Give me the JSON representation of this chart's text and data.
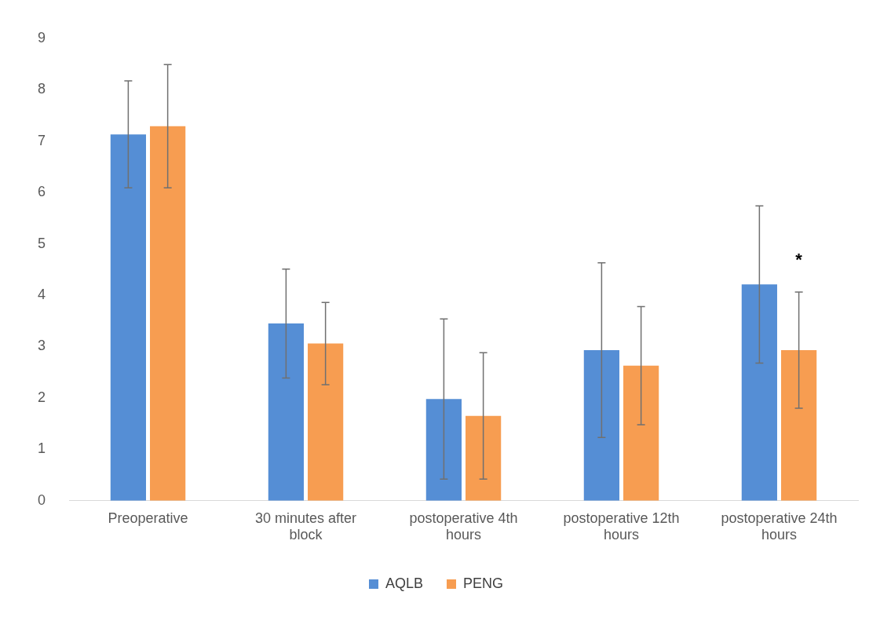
{
  "chart_data": {
    "type": "bar",
    "categories": [
      "Preoperative",
      "30 minutes after block",
      "postoperative 4th hours",
      "postoperative 12th hours",
      "postoperative 24th hours"
    ],
    "series": [
      {
        "name": "AQLB",
        "color": "#558ed5",
        "values": [
          7.13,
          3.45,
          1.98,
          2.93,
          4.21
        ],
        "errors": [
          1.04,
          1.06,
          1.56,
          1.7,
          1.53
        ]
      },
      {
        "name": "PENG",
        "color": "#f79d51",
        "values": [
          7.29,
          3.06,
          1.65,
          2.63,
          2.93
        ],
        "errors": [
          1.2,
          0.8,
          1.23,
          1.15,
          1.13
        ]
      }
    ],
    "ylim": [
      0,
      9
    ],
    "yticks": [
      0,
      1,
      2,
      3,
      4,
      5,
      6,
      7,
      8,
      9
    ],
    "grid": false,
    "legend": "bottom",
    "annotations": [
      "*"
    ]
  }
}
